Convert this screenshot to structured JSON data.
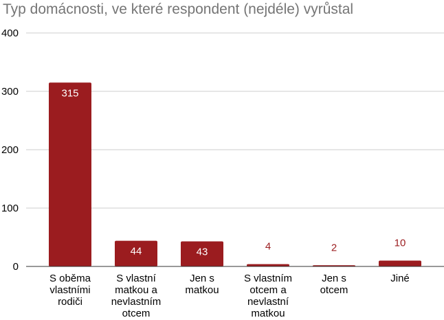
{
  "chart_data": {
    "type": "bar",
    "title": "Typ domácnosti, ve které respondent (nejdéle) vyrůstal",
    "xlabel": "",
    "ylabel": "",
    "categories": [
      [
        "S oběma",
        "vlastními",
        "rodiči"
      ],
      [
        "S vlastní",
        "matkou a",
        "nevlastním",
        "otcem"
      ],
      [
        "Jen s",
        "matkou"
      ],
      [
        "S vlastním",
        "otcem a",
        "nevlastní",
        "matkou"
      ],
      [
        "Jen s",
        "otcem"
      ],
      [
        "Jiné"
      ]
    ],
    "values": [
      315,
      44,
      43,
      4,
      2,
      10
    ],
    "data_labels": [
      "315",
      "44",
      "43",
      "4",
      "2",
      "10"
    ],
    "ylim": [
      0,
      400
    ],
    "yticks": [
      0,
      100,
      200,
      300,
      400
    ],
    "ytick_labels": [
      "0",
      "100",
      "200",
      "300",
      "400"
    ],
    "grid": true,
    "legend": "none",
    "colors": {
      "bar": "#9b1c1f",
      "grid": "#cccccc",
      "baseline": "#333333",
      "title": "#757575"
    }
  }
}
